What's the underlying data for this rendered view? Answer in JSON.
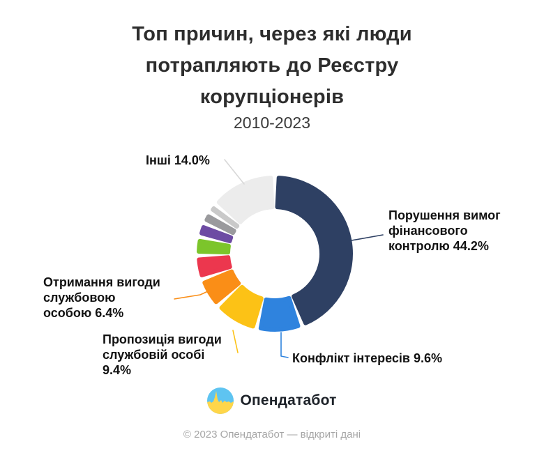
{
  "title": {
    "text": "Топ причин, через які люди\nпотрапляють до Реєстру\nкорупціонерів",
    "subtitle": "2010-2023"
  },
  "chart_data": {
    "type": "pie",
    "variant": "donut",
    "title": "Топ причин, через які люди потрапляють до Реєстру корупціонерів",
    "period": "2010-2023",
    "units": "%",
    "direction": "clockwise",
    "start_angle_deg": 0,
    "unlabeled_note": "Five small segments between the orange segment and 'Інші' carry no labels in the image; their values are estimated from arc lengths so the total equals 100%.",
    "segments": [
      {
        "label": "Порушення вимог фінансового контролю",
        "value": 44.2,
        "color": "#2e4063"
      },
      {
        "label": "Конфлікт інтересів",
        "value": 9.6,
        "color": "#2f83de"
      },
      {
        "label": "Пропозиція вигоди службовій особі",
        "value": 9.4,
        "color": "#fcc216"
      },
      {
        "label": "Отримання вигоди службовою особою",
        "value": 6.4,
        "color": "#fa8e17"
      },
      {
        "label": "",
        "value": 5.0,
        "color": "#ec374e"
      },
      {
        "label": "",
        "value": 3.9,
        "color": "#7cc52b"
      },
      {
        "label": "",
        "value": 3.0,
        "color": "#6d4ba3"
      },
      {
        "label": "",
        "value": 2.5,
        "color": "#9a9a9d"
      },
      {
        "label": "",
        "value": 2.0,
        "color": "#c9c9c9"
      },
      {
        "label": "Інші",
        "value": 14.0,
        "color": "#ececec"
      }
    ]
  },
  "callouts": {
    "inshi": "Інші 14.0%",
    "porushennia": "Порушення вимог\nфінансового\nконтролю 44.2%",
    "otrymannia": "Отримання вигоди\nслужбовою\nособою 6.4%",
    "propozytsiia": "Пропозиція вигоди\nслужбовій особі\n9.4%",
    "konflikt": "Конфлікт інтересів 9.6%"
  },
  "logo": {
    "text": "Опендатабот",
    "icon": "opendatabot-pulse-circle-icon",
    "icon_colors": {
      "blue": "#5ec4f1",
      "yellow": "#ffd64a"
    }
  },
  "footer": {
    "text": "© 2023 Опендатабот — відкриті дані"
  }
}
